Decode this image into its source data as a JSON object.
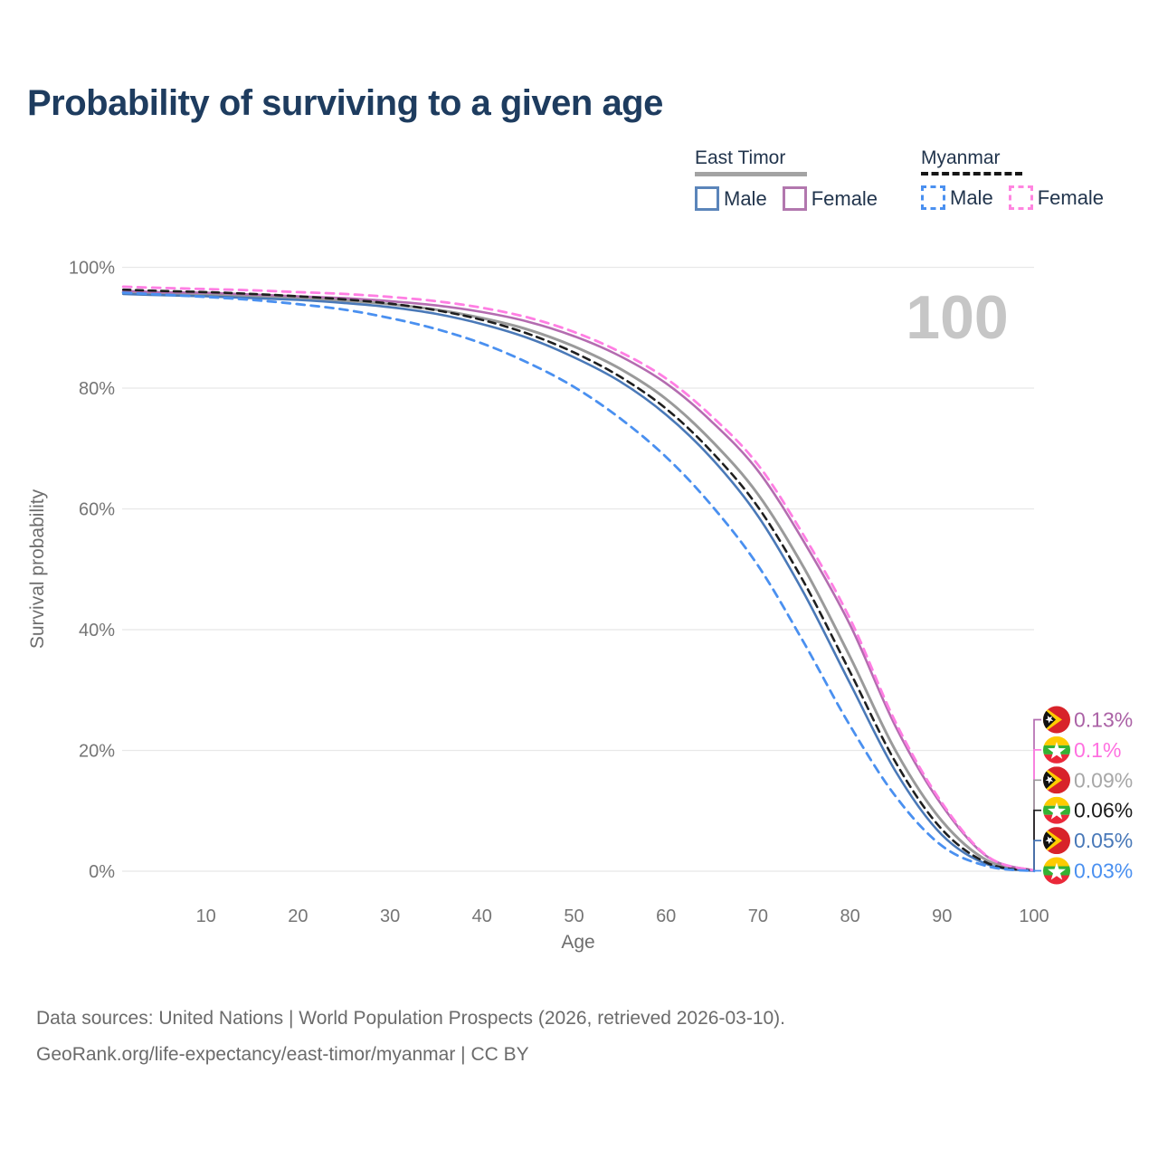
{
  "title": "Probability of surviving to a given age",
  "hover_age_indicator": "100",
  "legend": {
    "groups": [
      {
        "label": "East Timor",
        "swatch_style": "solid",
        "swatch_color": "#a3a3a3",
        "items": [
          {
            "label": "Male",
            "color": "#4a79b8",
            "dashed": false
          },
          {
            "label": "Female",
            "color": "#b46cb0",
            "dashed": false
          }
        ]
      },
      {
        "label": "Myanmar",
        "swatch_style": "dashed",
        "swatch_color": "#161616",
        "items": [
          {
            "label": "Male",
            "color": "#4a90f0",
            "dashed": true
          },
          {
            "label": "Female",
            "color": "#ff7ee3",
            "dashed": true
          }
        ]
      }
    ]
  },
  "chart_data": {
    "type": "line",
    "title": "Probability of surviving to a given age",
    "xlabel": "Age",
    "ylabel": "Survival probability",
    "xlim": [
      0,
      100
    ],
    "ylim": [
      0,
      100
    ],
    "x_ticks": [
      10,
      20,
      30,
      40,
      50,
      60,
      70,
      80,
      90,
      100
    ],
    "y_ticks": [
      0,
      20,
      40,
      60,
      80,
      100
    ],
    "y_tick_suffix": "%",
    "grid": "horizontal",
    "legend_position": "top-right",
    "ages": [
      1,
      5,
      10,
      15,
      20,
      25,
      30,
      35,
      40,
      45,
      50,
      55,
      60,
      65,
      70,
      75,
      80,
      85,
      90,
      95,
      100
    ],
    "series": [
      {
        "name": "East Timor Female",
        "country": "East Timor",
        "sex": "Female",
        "color": "#b46cb0",
        "dash": null,
        "width": 2.6,
        "flag": "east-timor",
        "end_label": "0.13%",
        "end_label_color": "#ab62a6",
        "values": [
          96.1,
          95.9,
          95.8,
          95.5,
          95.2,
          94.9,
          94.4,
          93.7,
          92.6,
          91.0,
          88.6,
          85.3,
          80.8,
          74.4,
          66.3,
          54.5,
          40.8,
          23.8,
          10.9,
          2.3,
          0.13
        ]
      },
      {
        "name": "Myanmar Female",
        "country": "Myanmar",
        "sex": "Female",
        "color": "#ff7ee3",
        "dash": "9 7",
        "width": 2.8,
        "flag": "myanmar",
        "end_label": "0.1%",
        "end_label_color": "#ff70e0",
        "values": [
          96.8,
          96.6,
          96.4,
          96.2,
          95.9,
          95.6,
          95.1,
          94.4,
          93.3,
          91.7,
          89.3,
          86.0,
          81.6,
          75.3,
          67.3,
          55.5,
          41.8,
          24.5,
          11.3,
          2.4,
          0.1
        ]
      },
      {
        "name": "East Timor Both Sexes",
        "country": "East Timor",
        "sex": "Both",
        "color": "#9a9a9a",
        "dash": null,
        "width": 3.0,
        "flag": "east-timor",
        "end_label": "0.09%",
        "end_label_color": "#a7a7a7",
        "values": [
          95.9,
          95.7,
          95.5,
          95.2,
          94.9,
          94.5,
          93.9,
          93.0,
          91.6,
          89.7,
          86.9,
          83.2,
          78.2,
          71.2,
          62.4,
          50.2,
          35.5,
          19.8,
          8.3,
          1.7,
          0.09
        ]
      },
      {
        "name": "Myanmar Both Sexes",
        "country": "Myanmar",
        "sex": "Both",
        "color": "#1f1f1f",
        "dash": "8 6",
        "width": 2.6,
        "flag": "myanmar",
        "end_label": "0.06%",
        "end_label_color": "#1a1a1a",
        "values": [
          96.3,
          96.1,
          95.9,
          95.6,
          95.2,
          94.7,
          94.0,
          92.9,
          91.3,
          89.0,
          85.9,
          81.9,
          76.6,
          69.4,
          60.3,
          47.8,
          33.0,
          17.9,
          6.9,
          1.3,
          0.06
        ]
      },
      {
        "name": "East Timor Male",
        "country": "East Timor",
        "sex": "Male",
        "color": "#4a79b8",
        "dash": null,
        "width": 2.6,
        "flag": "east-timor",
        "end_label": "0.05%",
        "end_label_color": "#4878b8",
        "values": [
          95.6,
          95.4,
          95.2,
          94.9,
          94.6,
          94.1,
          93.4,
          92.3,
          90.6,
          88.3,
          85.1,
          81.1,
          75.6,
          68.3,
          58.8,
          46.0,
          31.1,
          16.4,
          6.0,
          1.1,
          0.05
        ]
      },
      {
        "name": "Myanmar Male",
        "country": "Myanmar",
        "sex": "Male",
        "color": "#4a90f0",
        "dash": "9 7",
        "width": 2.8,
        "flag": "myanmar",
        "end_label": "0.03%",
        "end_label_color": "#4a90f0",
        "values": [
          95.8,
          95.5,
          95.1,
          94.6,
          93.9,
          93.0,
          91.6,
          89.8,
          87.4,
          84.2,
          80.2,
          75.0,
          68.6,
          60.5,
          50.6,
          37.8,
          24.1,
          12.3,
          4.2,
          0.8,
          0.03
        ]
      }
    ]
  },
  "flags": {
    "east-timor": {
      "red": "#d8232a",
      "yellow": "#ffcd00",
      "black": "#111111",
      "star": "#ffffff"
    },
    "myanmar": {
      "yellow": "#fecb00",
      "green": "#34b233",
      "red": "#ea2839",
      "star": "#ffffff"
    }
  },
  "footer": {
    "line1": "Data sources: United Nations | World Population Prospects (2026, retrieved 2026-03-10).",
    "line2": "GeoRank.org/life-expectancy/east-timor/myanmar | CC BY"
  }
}
